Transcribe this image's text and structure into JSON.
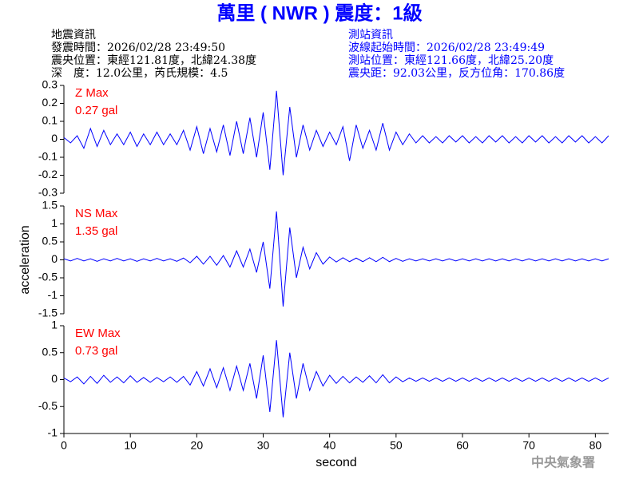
{
  "header": {
    "title": "萬里 ( NWR ) 震度：1級",
    "left": [
      "地震資訊",
      "發震時間：2026/02/28 23:49:50",
      "震央位置：東經121.81度，北緯24.38度",
      "深　度：12.0公里，芮氏規模：4.5"
    ],
    "right": [
      "測站資訊",
      "波線起始時間：2026/02/28 23:49:49",
      "測站位置：東經121.66度，北緯25.20度",
      "震央距：92.03公里，反方位角：170.86度"
    ]
  },
  "footer": "中央氣象署",
  "chart_data": [
    {
      "type": "line",
      "annotations": [
        "Z Max",
        "0.27 gal"
      ],
      "annotation_color": "#ff0000",
      "color": "#0000ff",
      "xlim": [
        0,
        82
      ],
      "ylim": [
        -0.3,
        0.3
      ],
      "yticks": [
        -0.3,
        -0.2,
        -0.1,
        0,
        0.1,
        0.2,
        0.3
      ],
      "x": [
        0,
        1,
        2,
        3,
        4,
        5,
        6,
        7,
        8,
        9,
        10,
        11,
        12,
        13,
        14,
        15,
        16,
        17,
        18,
        19,
        20,
        21,
        22,
        23,
        24,
        25,
        26,
        27,
        28,
        29,
        30,
        31,
        32,
        33,
        34,
        35,
        36,
        37,
        38,
        39,
        40,
        41,
        42,
        43,
        44,
        45,
        46,
        47,
        48,
        49,
        50,
        51,
        52,
        53,
        54,
        55,
        56,
        57,
        58,
        59,
        60,
        61,
        62,
        63,
        64,
        65,
        66,
        67,
        68,
        69,
        70,
        71,
        72,
        73,
        74,
        75,
        76,
        77,
        78,
        79,
        80,
        81,
        82
      ],
      "values": [
        0.01,
        -0.02,
        0.02,
        -0.05,
        0.06,
        -0.04,
        0.05,
        -0.03,
        0.03,
        -0.03,
        0.04,
        -0.04,
        0.03,
        -0.03,
        0.04,
        -0.03,
        0.03,
        -0.03,
        0.05,
        -0.06,
        0.07,
        -0.08,
        0.06,
        -0.07,
        0.08,
        -0.09,
        0.1,
        -0.08,
        0.12,
        -0.1,
        0.15,
        -0.17,
        0.27,
        -0.2,
        0.18,
        -0.1,
        0.08,
        -0.06,
        0.05,
        -0.04,
        0.04,
        -0.03,
        0.07,
        -0.12,
        0.08,
        -0.05,
        0.05,
        -0.06,
        0.09,
        -0.06,
        0.04,
        -0.03,
        0.03,
        -0.02,
        0.02,
        -0.02,
        0.015,
        -0.02,
        0.02,
        -0.015,
        0.02,
        -0.02,
        0.015,
        -0.02,
        0.02,
        -0.015,
        0.02,
        -0.02,
        0.015,
        -0.02,
        0.02,
        -0.015,
        0.02,
        -0.02,
        0.015,
        -0.02,
        0.02,
        -0.015,
        0.02,
        -0.02,
        0.015,
        -0.02,
        0.02
      ]
    },
    {
      "type": "line",
      "annotations": [
        "NS Max",
        "1.35 gal"
      ],
      "annotation_color": "#ff0000",
      "color": "#0000ff",
      "ylabel": "acceleration",
      "xlim": [
        0,
        82
      ],
      "ylim": [
        -1.5,
        1.5
      ],
      "yticks": [
        -1.5,
        -1,
        -0.5,
        0,
        0.5,
        1,
        1.5
      ],
      "x": [
        0,
        1,
        2,
        3,
        4,
        5,
        6,
        7,
        8,
        9,
        10,
        11,
        12,
        13,
        14,
        15,
        16,
        17,
        18,
        19,
        20,
        21,
        22,
        23,
        24,
        25,
        26,
        27,
        28,
        29,
        30,
        31,
        32,
        33,
        34,
        35,
        36,
        37,
        38,
        39,
        40,
        41,
        42,
        43,
        44,
        45,
        46,
        47,
        48,
        49,
        50,
        51,
        52,
        53,
        54,
        55,
        56,
        57,
        58,
        59,
        60,
        61,
        62,
        63,
        64,
        65,
        66,
        67,
        68,
        69,
        70,
        71,
        72,
        73,
        74,
        75,
        76,
        77,
        78,
        79,
        80,
        81,
        82
      ],
      "values": [
        0.03,
        -0.03,
        0.04,
        -0.03,
        0.03,
        -0.04,
        0.03,
        -0.03,
        0.04,
        -0.03,
        0.03,
        -0.04,
        0.03,
        -0.03,
        0.04,
        -0.03,
        0.03,
        -0.04,
        0.05,
        -0.08,
        0.1,
        -0.12,
        0.1,
        -0.15,
        0.12,
        -0.2,
        0.25,
        -0.2,
        0.3,
        -0.35,
        0.5,
        -0.8,
        1.35,
        -1.3,
        0.9,
        -0.5,
        0.35,
        -0.25,
        0.2,
        -0.12,
        0.08,
        -0.06,
        0.06,
        -0.05,
        0.05,
        -0.05,
        0.06,
        -0.05,
        0.07,
        -0.05,
        0.04,
        -0.04,
        0.03,
        -0.03,
        0.03,
        -0.03,
        0.03,
        -0.03,
        0.03,
        -0.03,
        0.03,
        -0.03,
        0.03,
        -0.03,
        0.03,
        -0.03,
        0.03,
        -0.03,
        0.03,
        -0.03,
        0.03,
        -0.03,
        0.03,
        -0.03,
        0.03,
        -0.03,
        0.03,
        -0.03,
        0.03,
        -0.03,
        0.03,
        -0.03,
        0.03
      ]
    },
    {
      "type": "line",
      "annotations": [
        "EW Max",
        "0.73 gal"
      ],
      "annotation_color": "#ff0000",
      "color": "#0000ff",
      "xlabel": "second",
      "xlim": [
        0,
        82
      ],
      "xticks": [
        0,
        10,
        20,
        30,
        40,
        50,
        60,
        70,
        80
      ],
      "ylim": [
        -1,
        1
      ],
      "yticks": [
        -1,
        -0.5,
        0,
        0.5,
        1
      ],
      "x": [
        0,
        1,
        2,
        3,
        4,
        5,
        6,
        7,
        8,
        9,
        10,
        11,
        12,
        13,
        14,
        15,
        16,
        17,
        18,
        19,
        20,
        21,
        22,
        23,
        24,
        25,
        26,
        27,
        28,
        29,
        30,
        31,
        32,
        33,
        34,
        35,
        36,
        37,
        38,
        39,
        40,
        41,
        42,
        43,
        44,
        45,
        46,
        47,
        48,
        49,
        50,
        51,
        52,
        53,
        54,
        55,
        56,
        57,
        58,
        59,
        60,
        61,
        62,
        63,
        64,
        65,
        66,
        67,
        68,
        69,
        70,
        71,
        72,
        73,
        74,
        75,
        76,
        77,
        78,
        79,
        80,
        81,
        82
      ],
      "values": [
        0.03,
        -0.04,
        0.05,
        -0.08,
        0.06,
        -0.07,
        0.08,
        -0.05,
        0.05,
        -0.06,
        0.07,
        -0.05,
        0.04,
        -0.05,
        0.04,
        -0.04,
        0.05,
        -0.05,
        0.06,
        -0.1,
        0.15,
        -0.12,
        0.2,
        -0.15,
        0.22,
        -0.2,
        0.25,
        -0.2,
        0.3,
        -0.35,
        0.45,
        -0.6,
        0.73,
        -0.7,
        0.5,
        -0.35,
        0.3,
        -0.2,
        0.15,
        -0.12,
        0.08,
        -0.07,
        0.06,
        -0.06,
        0.05,
        -0.05,
        0.07,
        -0.06,
        0.09,
        -0.06,
        0.05,
        -0.04,
        0.03,
        -0.03,
        0.03,
        -0.03,
        0.03,
        -0.03,
        0.03,
        -0.03,
        0.03,
        -0.03,
        0.03,
        -0.03,
        0.03,
        -0.03,
        0.03,
        -0.03,
        0.03,
        -0.03,
        0.03,
        -0.03,
        0.03,
        -0.03,
        0.03,
        -0.03,
        0.03,
        -0.03,
        0.03,
        -0.03,
        0.03,
        -0.03,
        0.03
      ]
    }
  ]
}
